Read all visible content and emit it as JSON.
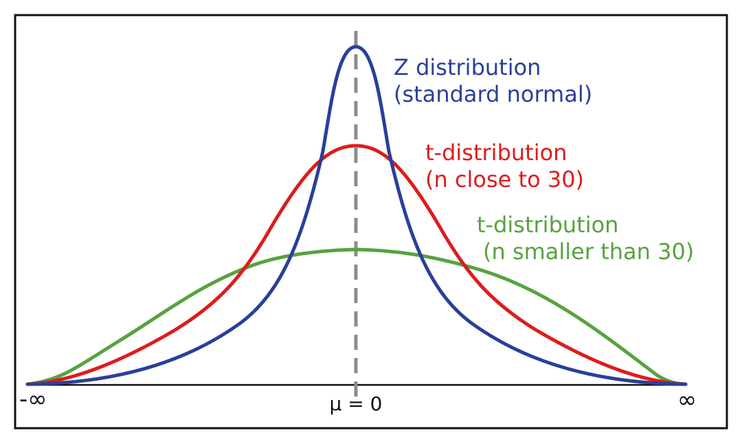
{
  "colors": {
    "z": "#2a3f9a",
    "t_close": "#dd1c1c",
    "t_small": "#57a23f"
  },
  "axis": {
    "left_label": "-∞",
    "center_label": "μ = 0",
    "right_label": "∞"
  },
  "labels": {
    "z_line1": "Z distribution",
    "z_line2": "(standard normal)",
    "t_close_line1": "t-distribution",
    "t_close_line2": "(n close to 30)",
    "t_small_line1": "t-distribution",
    "t_small_line2": "(n smaller than 30)"
  }
}
